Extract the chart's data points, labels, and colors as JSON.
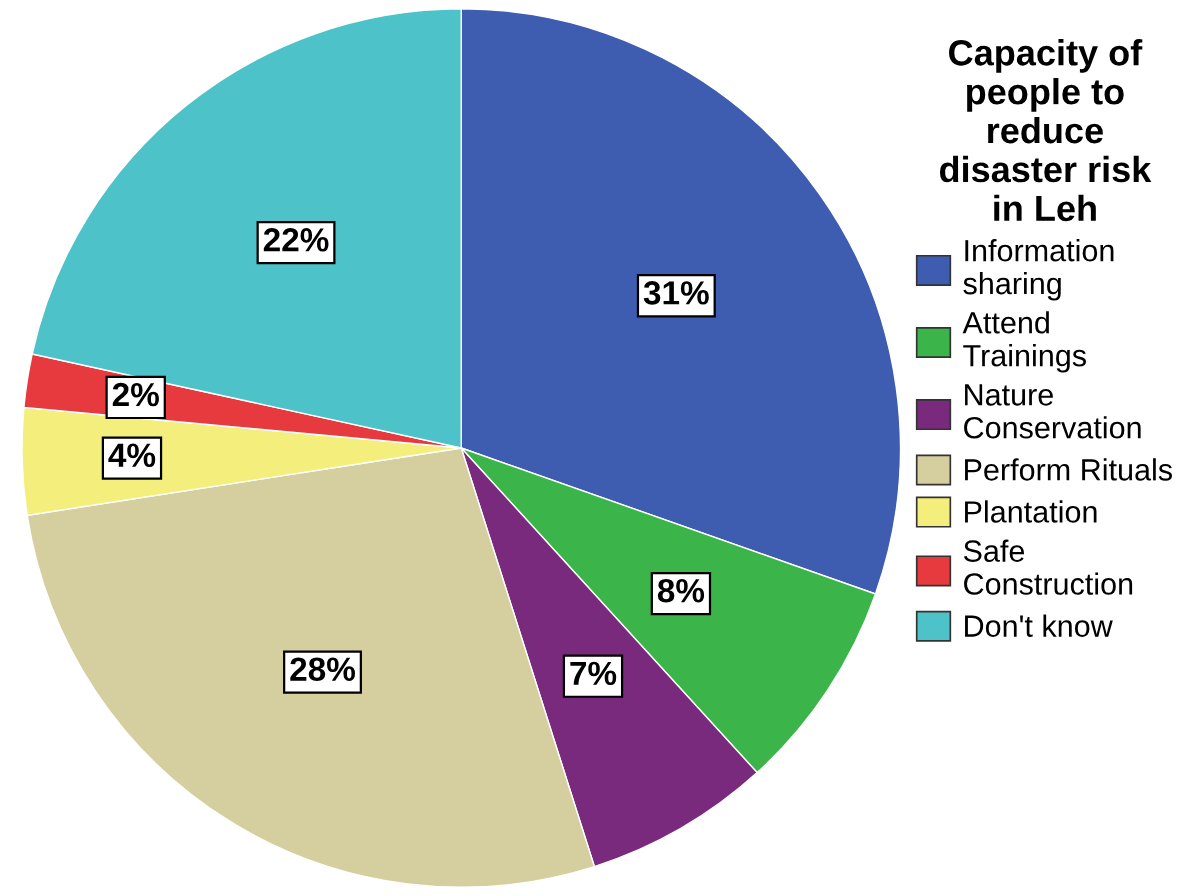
{
  "chart_data": {
    "type": "pie",
    "legend_title": "Capacity of\npeople to\nreduce\ndisaster risk\nin Leh",
    "categories": [
      "Information\nsharing",
      "Attend\nTrainings",
      "Nature\nConservation",
      "Perform Rituals",
      "Plantation",
      "Safe\nConstruction",
      "Don't know"
    ],
    "values": [
      31,
      8,
      7,
      28,
      4,
      2,
      22
    ],
    "colors": [
      "#3f5db0",
      "#3bb54a",
      "#7a2a7d",
      "#d5cfa0",
      "#f4ef7c",
      "#e63a3f",
      "#4dc3c9"
    ],
    "value_labels": [
      "31%",
      "8%",
      "7%",
      "28%",
      "4%",
      "2%",
      "22%"
    ],
    "legend": "right"
  }
}
